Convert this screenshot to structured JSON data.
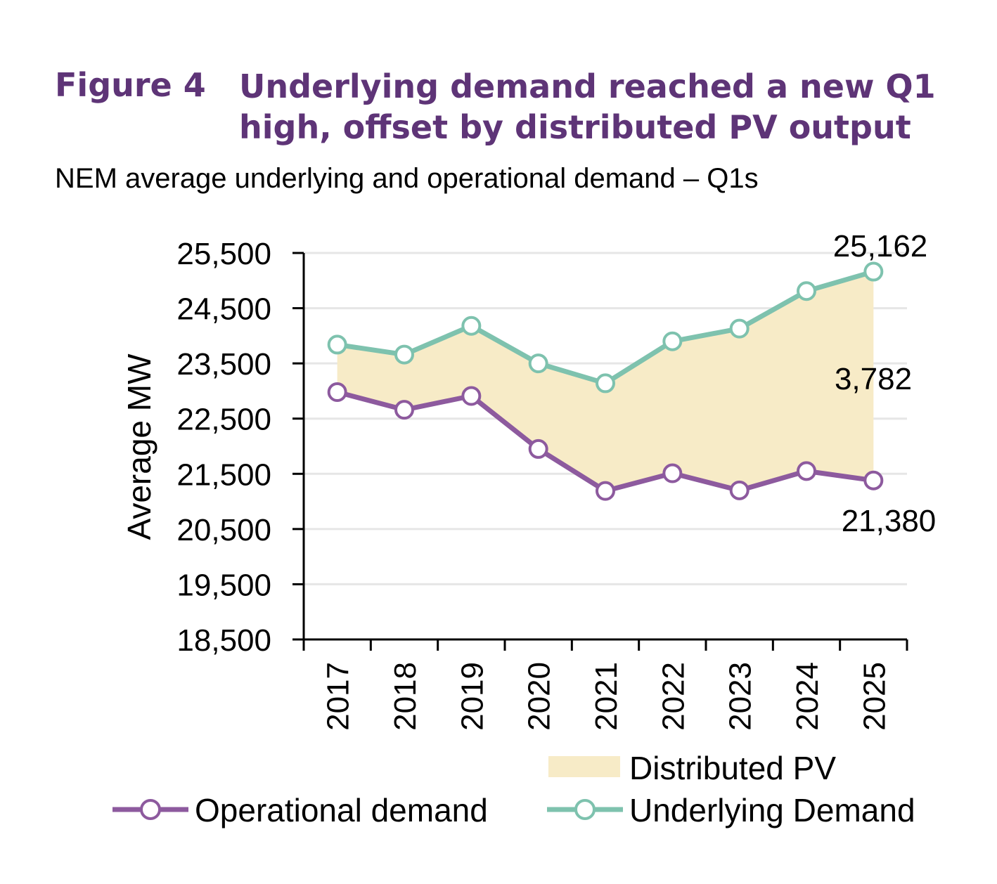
{
  "figure": {
    "label": "Figure 4",
    "title": "Underlying demand reached a new Q1 high, offset by distributed PV output",
    "subtitle": "NEM average underlying and operational demand – Q1s"
  },
  "colors": {
    "title": "#5e3477",
    "operational": "#8d5a9e",
    "underlying": "#7ec2ae",
    "pv_fill": "#f7ebc7",
    "axis": "#000000",
    "grid": "#e6e6e6"
  },
  "chart_data": {
    "type": "line",
    "ylabel": "Average MW",
    "ylim": [
      18500,
      25500
    ],
    "yticks": [
      "25,500",
      "24,500",
      "23,500",
      "22,500",
      "21,500",
      "20,500",
      "19,500",
      "18,500"
    ],
    "ytick_values": [
      25500,
      24500,
      23500,
      22500,
      21500,
      20500,
      19500,
      18500
    ],
    "categories": [
      "2017",
      "2018",
      "2019",
      "2020",
      "2021",
      "2022",
      "2023",
      "2024",
      "2025"
    ],
    "grid": true,
    "series": [
      {
        "name": "Operational demand",
        "values": [
          22980,
          22660,
          22910,
          21950,
          21190,
          21510,
          21200,
          21550,
          21380
        ]
      },
      {
        "name": "Underlying Demand",
        "values": [
          23840,
          23660,
          24180,
          23500,
          23140,
          23900,
          24130,
          24810,
          25162
        ]
      }
    ],
    "area": {
      "name": "Distributed PV"
    },
    "annotations": [
      {
        "text": "25,162"
      },
      {
        "text": "3,782"
      },
      {
        "text": "21,380"
      }
    ],
    "legend": "bottom"
  }
}
